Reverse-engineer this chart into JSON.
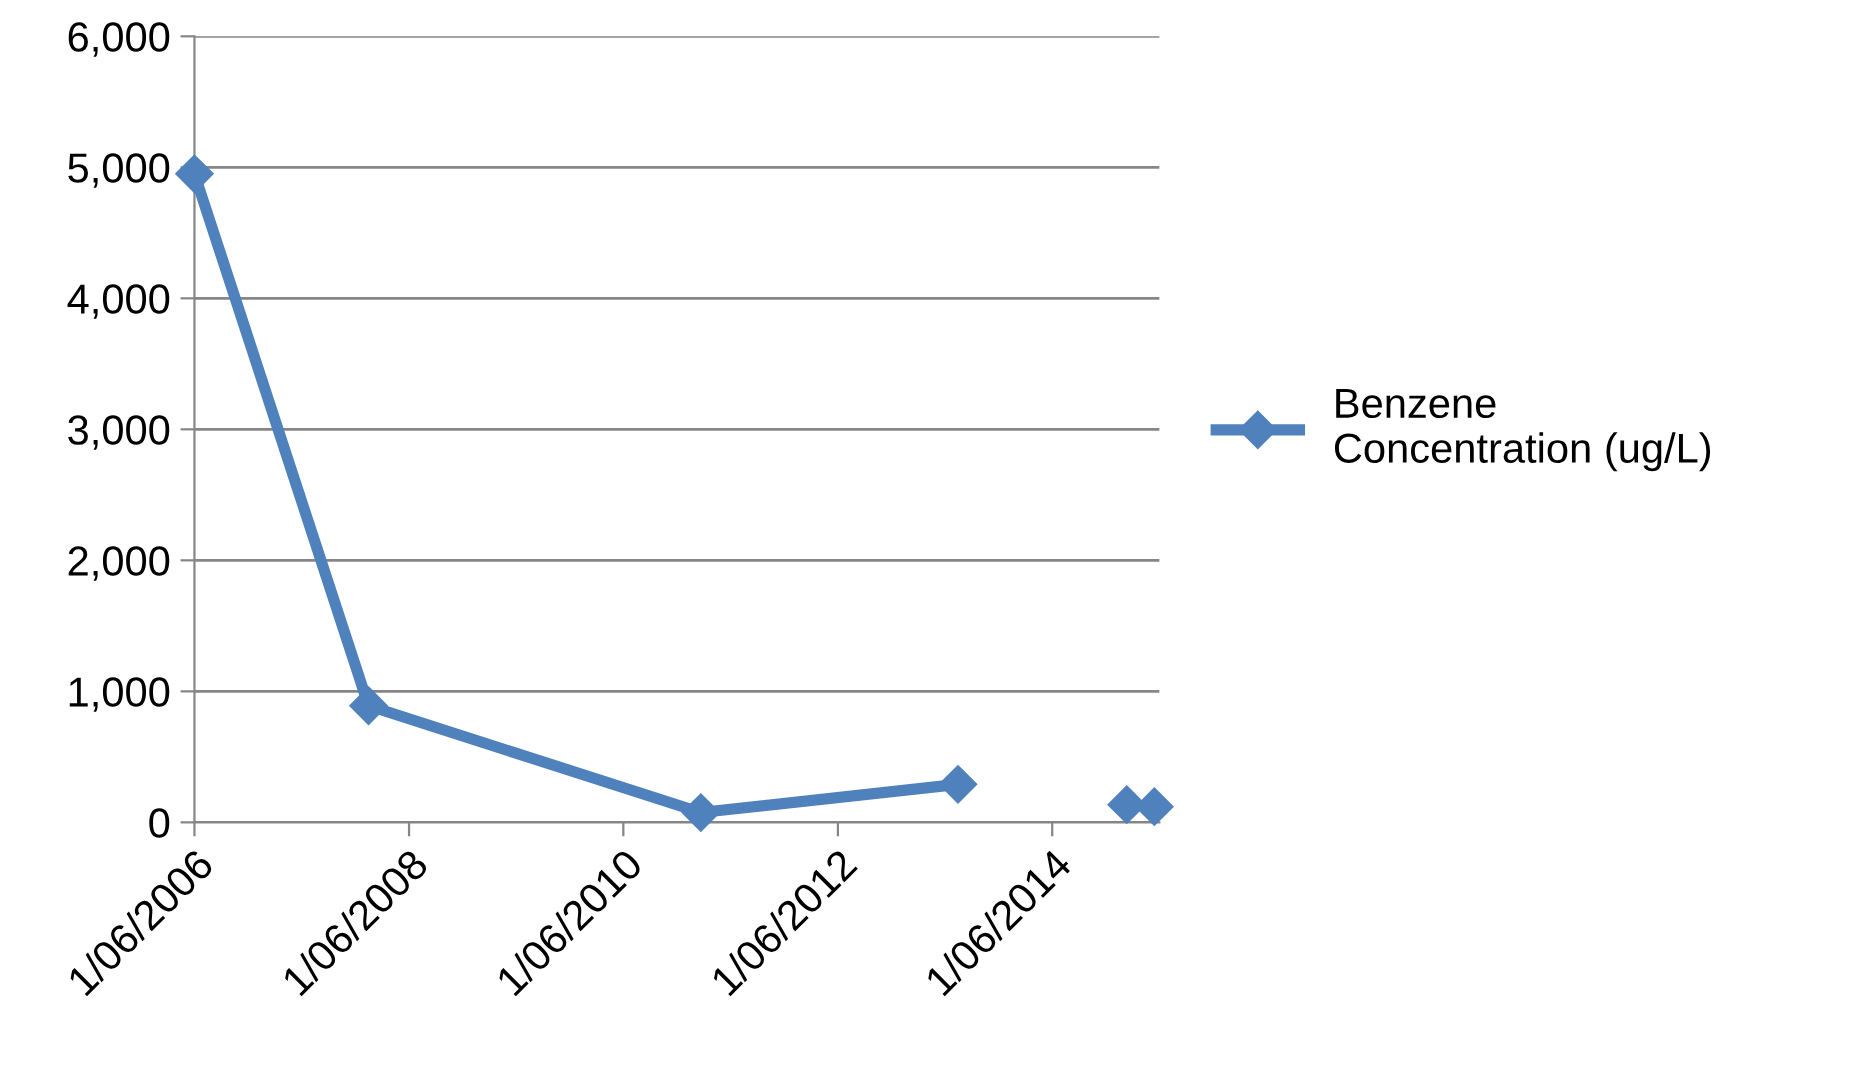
{
  "chart_data": {
    "type": "line",
    "x": [
      "2006-06-01",
      "2008-01-15",
      "2011-02-20",
      "2013-07-15",
      "2014-06-01",
      "2015-02-10",
      "2015-05-15"
    ],
    "series": [
      {
        "name": "Benzene\nConcentration (ug/L)",
        "color": "#4f81bd",
        "values": [
          4950,
          890,
          75,
          290,
          null,
          135,
          120
        ]
      }
    ],
    "xlim": [
      "2006-06-01",
      "2015-06-01"
    ],
    "xticks": [
      {
        "value": "2006-06-01",
        "label": "1/06/2006"
      },
      {
        "value": "2008-06-01",
        "label": "1/06/2008"
      },
      {
        "value": "2010-06-01",
        "label": "1/06/2010"
      },
      {
        "value": "2012-06-01",
        "label": "1/06/2012"
      },
      {
        "value": "2014-06-01",
        "label": "1/06/2014"
      }
    ],
    "ylim": [
      0,
      6000
    ],
    "yticks": [
      0,
      {
        "value": 1000,
        "label": "1,000"
      },
      {
        "value": 2000,
        "label": "2,000"
      },
      {
        "value": 3000,
        "label": "3,000"
      },
      {
        "value": 4000,
        "label": "4,000"
      },
      {
        "value": 5000,
        "label": "5,000"
      },
      {
        "value": 6000,
        "label": "6,000"
      }
    ],
    "grid": "y",
    "legend": "right",
    "marker": "diamond",
    "line_style": "solid"
  }
}
